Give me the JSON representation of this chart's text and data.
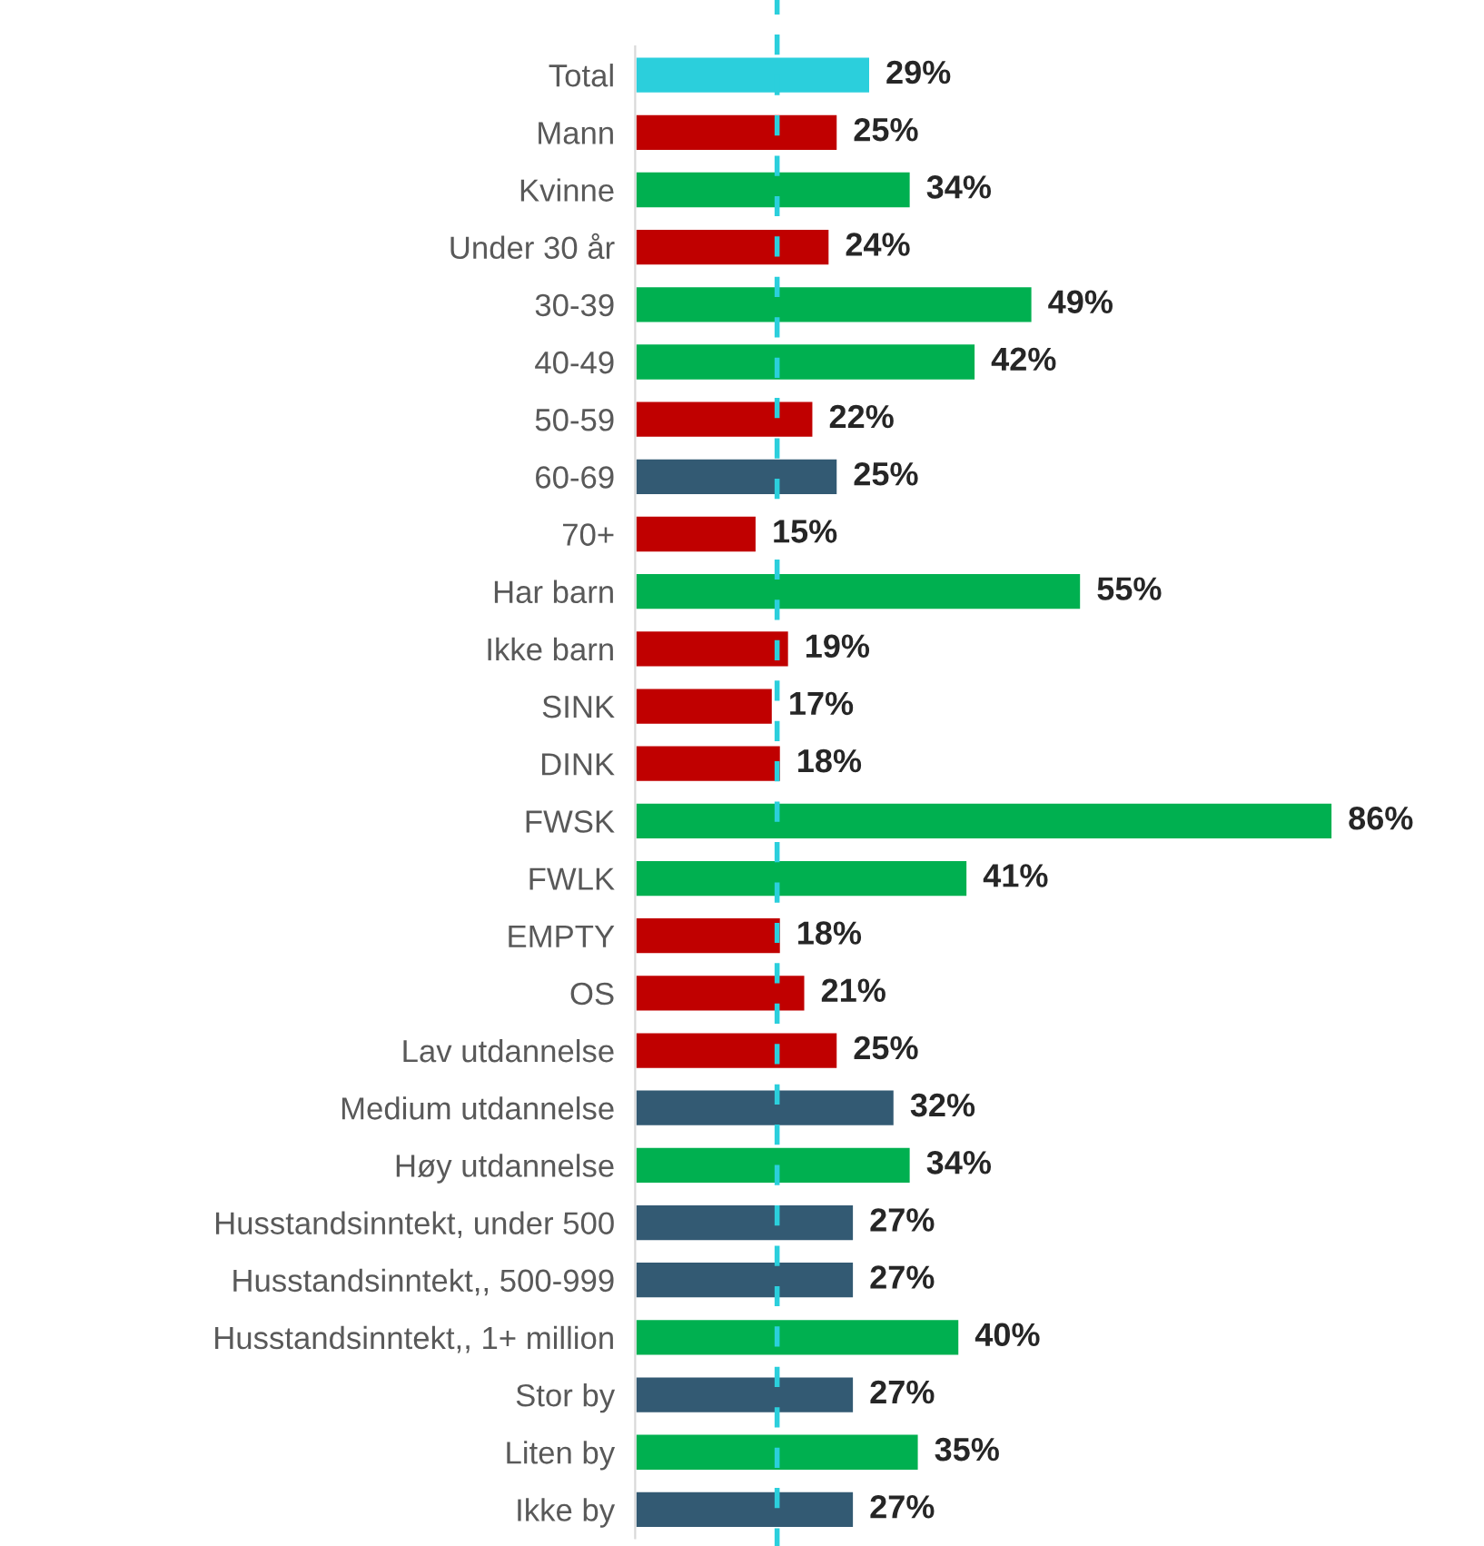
{
  "chart_data": {
    "type": "bar",
    "orientation": "horizontal",
    "categories": [
      "Total",
      "Mann",
      "Kvinne",
      "Under 30 år",
      "30-39",
      "40-49",
      "50-59",
      "60-69",
      "70+",
      "Har barn",
      "Ikke barn",
      "SINK",
      "DINK",
      "FWSK",
      "FWLK",
      "EMPTY",
      "OS",
      "Lav utdannelse",
      "Medium utdannelse",
      "Høy utdannelse",
      "Husstandsinntekt, under 500",
      "Husstandsinntekt,, 500-999",
      "Husstandsinntekt,, 1+ million",
      "Stor by",
      "Liten by",
      "Ikke by"
    ],
    "values": [
      29,
      25,
      34,
      24,
      49,
      42,
      22,
      25,
      15,
      55,
      19,
      17,
      18,
      86,
      41,
      18,
      21,
      25,
      32,
      34,
      27,
      27,
      40,
      27,
      35,
      27
    ],
    "value_labels": [
      "29%",
      "25%",
      "34%",
      "24%",
      "49%",
      "42%",
      "22%",
      "25%",
      "15%",
      "55%",
      "19%",
      "17%",
      "18%",
      "86%",
      "41%",
      "18%",
      "21%",
      "25%",
      "32%",
      "34%",
      "27%",
      "27%",
      "40%",
      "27%",
      "35%",
      "27%"
    ],
    "colors": [
      "#2bcfdc",
      "#c00000",
      "#00b050",
      "#c00000",
      "#00b050",
      "#00b050",
      "#c00000",
      "#335a73",
      "#c00000",
      "#00b050",
      "#c00000",
      "#c00000",
      "#c00000",
      "#00b050",
      "#00b050",
      "#c00000",
      "#c00000",
      "#c00000",
      "#335a73",
      "#00b050",
      "#335a73",
      "#335a73",
      "#00b050",
      "#335a73",
      "#00b050",
      "#335a73"
    ],
    "ref_lines": [
      {
        "axis": "x",
        "value": 17.5,
        "color": "#2bcfdc",
        "line_style": "dashed"
      }
    ],
    "grid": false,
    "legend": false
  }
}
